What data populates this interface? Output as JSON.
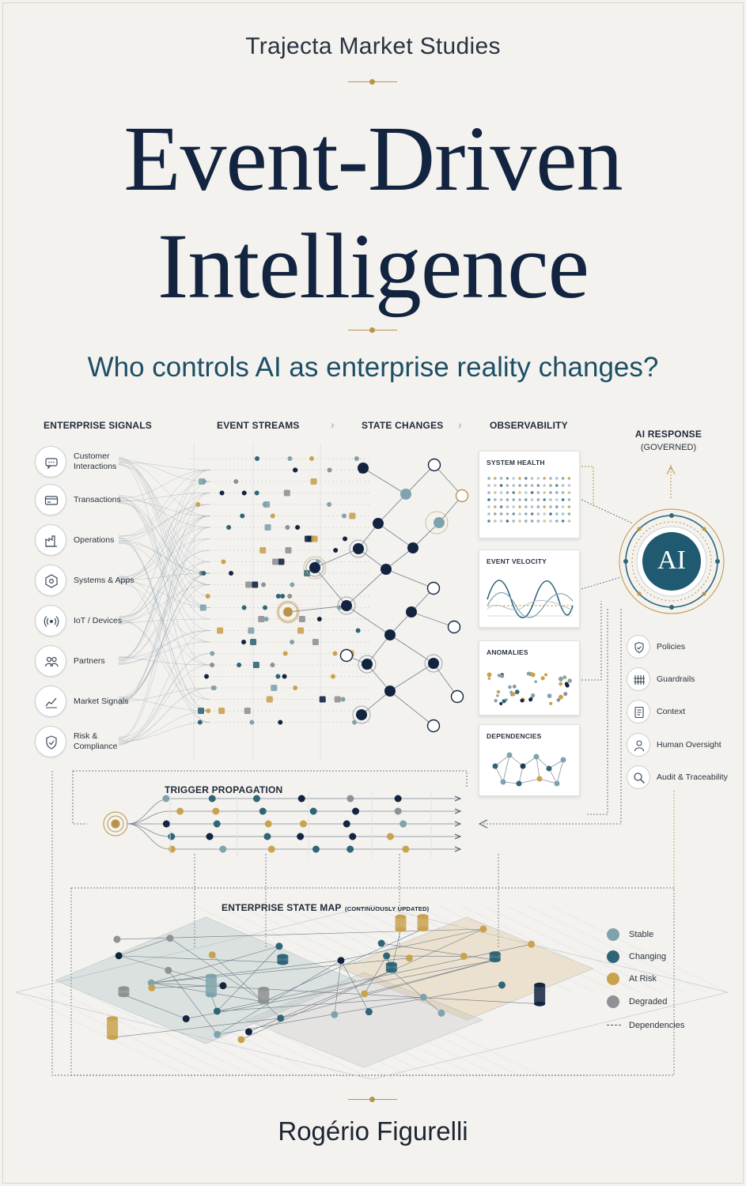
{
  "cover": {
    "publisher": "Trajecta Market Studies",
    "title_line1": "Event-Driven",
    "title_line2": "Intelligence",
    "subtitle": "Who controls AI as enterprise reality changes?",
    "author": "Rogério Figurelli"
  },
  "diagram": {
    "columns": {
      "enterprise_signals": "ENTERPRISE SIGNALS",
      "event_streams": "EVENT STREAMS",
      "state_changes": "STATE CHANGES",
      "observability": "OBSERVABILITY",
      "chevron": "›"
    },
    "signals": [
      {
        "label": "Customer\nInteractions",
        "icon": "chat-icon"
      },
      {
        "label": "Transactions",
        "icon": "card-icon"
      },
      {
        "label": "Operations",
        "icon": "factory-icon"
      },
      {
        "label": "Systems & Apps",
        "icon": "network-icon"
      },
      {
        "label": "IoT / Devices",
        "icon": "sensor-icon"
      },
      {
        "label": "Partners",
        "icon": "people-icon"
      },
      {
        "label": "Market Signals",
        "icon": "trend-icon"
      },
      {
        "label": "Risk &\nCompliance",
        "icon": "shield-icon"
      }
    ],
    "observability_panels": [
      {
        "title": "SYSTEM HEALTH"
      },
      {
        "title": "EVENT VELOCITY"
      },
      {
        "title": "ANOMALIES"
      },
      {
        "title": "DEPENDENCIES"
      }
    ],
    "ai_response": {
      "title": "AI RESPONSE",
      "subtitle": "(GOVERNED)",
      "badge": "AI"
    },
    "governance": [
      {
        "label": "Policies",
        "icon": "shield-check-icon"
      },
      {
        "label": "Guardrails",
        "icon": "fence-icon"
      },
      {
        "label": "Context",
        "icon": "document-icon"
      },
      {
        "label": "Human Oversight",
        "icon": "person-icon"
      },
      {
        "label": "Audit & Traceability",
        "icon": "magnifier-icon"
      }
    ],
    "trigger_propagation": {
      "title": "TRIGGER PROPAGATION"
    },
    "state_map": {
      "title": "ENTERPRISE STATE MAP",
      "note": "(CONTINUOUSLY UPDATED)"
    },
    "legend": [
      {
        "label": "Stable",
        "color": "#7fa3ad"
      },
      {
        "label": "Changing",
        "color": "#2e6678"
      },
      {
        "label": "At Risk",
        "color": "#c9a24f"
      },
      {
        "label": "Degraded",
        "color": "#8f9194"
      }
    ],
    "legend_dependencies": "Dependencies"
  },
  "colors": {
    "navy": "#132441",
    "teal": "#1c4f66",
    "gold": "#b9934b",
    "stable": "#7fa3ad",
    "changing": "#2e6678",
    "at_risk": "#c9a24f",
    "degraded": "#8f9194"
  }
}
